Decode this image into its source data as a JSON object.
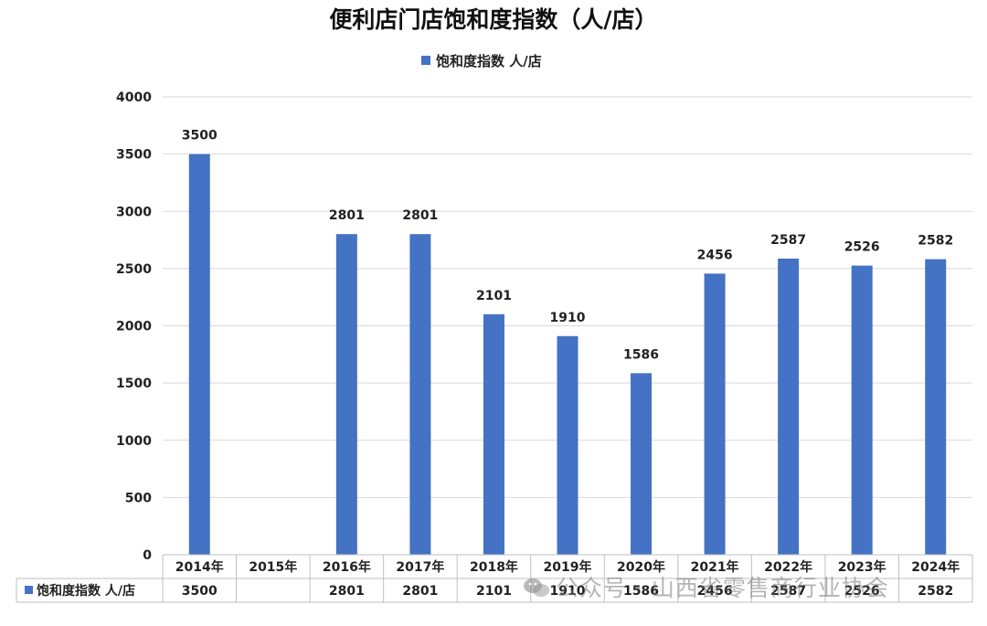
{
  "chart_data": {
    "type": "bar",
    "title": "便利店门店饱和度指数（人/店）",
    "legend": "饱和度指数  人/店",
    "series_name": "饱和度指数  人/店",
    "categories": [
      "2014年",
      "2015年",
      "2016年",
      "2017年",
      "2018年",
      "2019年",
      "2020年",
      "2021年",
      "2022年",
      "2023年",
      "2024年"
    ],
    "values": [
      3500,
      null,
      2801,
      2801,
      2101,
      1910,
      1586,
      2456,
      2587,
      2526,
      2582
    ],
    "table_values": [
      "3500",
      "",
      "2801",
      "2801",
      "2101",
      "1910",
      "1586",
      "2456",
      "2587",
      "2526",
      "2582"
    ],
    "ylim": [
      0,
      4000
    ],
    "yticks": [
      0,
      500,
      1000,
      1500,
      2000,
      2500,
      3000,
      3500,
      4000
    ],
    "grid": true,
    "legend_position": "top-center",
    "data_table": true
  },
  "colors": {
    "bar": "#4472C4",
    "grid": "#d9d9d9",
    "table_line": "#bfbfbf"
  },
  "watermark": {
    "icon": "wechat-icon",
    "text": "公众号 · 山西省零售商行业协会"
  }
}
